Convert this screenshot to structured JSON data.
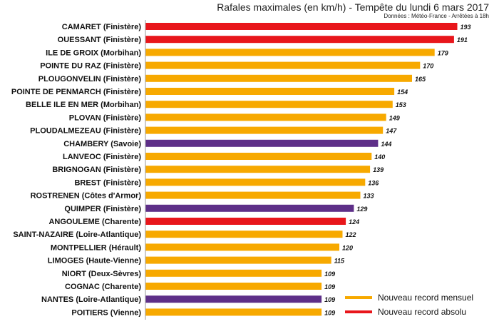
{
  "chart_data": {
    "type": "bar",
    "orientation": "horizontal",
    "title": "Rafales maximales (en km/h) - Tempête du lundi 6 mars 2017",
    "subtitle": "Données : Météo-France - Arrêtées à 18h",
    "xlim": [
      0,
      195
    ],
    "categories": [
      "CAMARET (Finistère)",
      "OUESSANT (Finistère)",
      "ILE DE GROIX (Morbihan)",
      "POINTE DU RAZ (Finistère)",
      "PLOUGONVELIN (Finistère)",
      "POINTE DE PENMARCH (Finistère)",
      "BELLE ILE EN MER (Morbihan)",
      "PLOVAN (Finistère)",
      "PLOUDALMEZEAU (Finistère)",
      "CHAMBERY (Savoie)",
      "LANVEOC (Finistère)",
      "BRIGNOGAN (Finistère)",
      "BREST (Finistère)",
      "ROSTRENEN (Côtes d'Armor)",
      "QUIMPER (Finistère)",
      "ANGOULEME (Charente)",
      "SAINT-NAZAIRE (Loire-Atlantique)",
      "MONTPELLIER (Hérault)",
      "LIMOGES (Haute-Vienne)",
      "NIORT (Deux-Sèvres)",
      "COGNAC (Charente)",
      "NANTES (Loire-Atlantique)",
      "POITIERS (Vienne)"
    ],
    "values": [
      193,
      191,
      179,
      170,
      165,
      154,
      153,
      149,
      147,
      144,
      140,
      139,
      136,
      133,
      129,
      124,
      122,
      120,
      115,
      109,
      109,
      109,
      109
    ],
    "value_labels": [
      "193",
      "191",
      "179",
      "170",
      "165",
      "154",
      "153",
      "149",
      "147",
      "144",
      "140",
      "139",
      "136",
      "133",
      "129",
      "124",
      "122",
      "120",
      "115",
      "109",
      "109",
      "109",
      "109"
    ],
    "bar_colors": [
      "red",
      "red",
      "orange",
      "orange",
      "orange",
      "orange",
      "orange",
      "orange",
      "orange",
      "purple",
      "orange",
      "orange",
      "orange",
      "orange",
      "purple",
      "red",
      "orange",
      "orange",
      "orange",
      "orange",
      "orange",
      "purple",
      "orange"
    ],
    "palette": {
      "red": "#e8161b",
      "orange": "#f7a900",
      "purple": "#5e2f88"
    },
    "legend": [
      {
        "label": "Nouveau record mensuel",
        "color": "#f7a900"
      },
      {
        "label": "Nouveau record absolu",
        "color": "#e8161b"
      }
    ]
  }
}
